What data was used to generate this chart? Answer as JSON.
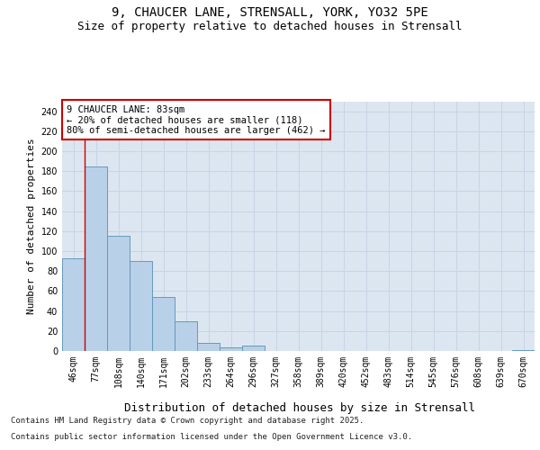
{
  "title_line1": "9, CHAUCER LANE, STRENSALL, YORK, YO32 5PE",
  "title_line2": "Size of property relative to detached houses in Strensall",
  "xlabel": "Distribution of detached houses by size in Strensall",
  "ylabel": "Number of detached properties",
  "categories": [
    "46sqm",
    "77sqm",
    "108sqm",
    "140sqm",
    "171sqm",
    "202sqm",
    "233sqm",
    "264sqm",
    "296sqm",
    "327sqm",
    "358sqm",
    "389sqm",
    "420sqm",
    "452sqm",
    "483sqm",
    "514sqm",
    "545sqm",
    "576sqm",
    "608sqm",
    "639sqm",
    "670sqm"
  ],
  "values": [
    93,
    185,
    115,
    90,
    54,
    30,
    8,
    4,
    5,
    0,
    0,
    0,
    0,
    0,
    0,
    0,
    0,
    0,
    0,
    0,
    1
  ],
  "bar_color": "#b8d0e8",
  "bar_edge_color": "#6699bb",
  "vline_color": "#cc0000",
  "vline_x_idx": 1,
  "annotation_title": "9 CHAUCER LANE: 83sqm",
  "annotation_line1": "← 20% of detached houses are smaller (118)",
  "annotation_line2": "80% of semi-detached houses are larger (462) →",
  "annotation_box_facecolor": "#ffffff",
  "annotation_box_edgecolor": "#cc0000",
  "ylim": [
    0,
    250
  ],
  "yticks": [
    0,
    20,
    40,
    60,
    80,
    100,
    120,
    140,
    160,
    180,
    200,
    220,
    240
  ],
  "grid_color": "#c8d4e4",
  "bg_color": "#dce6f0",
  "footer_line1": "Contains HM Land Registry data © Crown copyright and database right 2025.",
  "footer_line2": "Contains public sector information licensed under the Open Government Licence v3.0.",
  "title_fontsize": 10,
  "subtitle_fontsize": 9,
  "ylabel_fontsize": 8,
  "xlabel_fontsize": 9,
  "tick_fontsize": 7,
  "annotation_fontsize": 7.5,
  "footer_fontsize": 6.5
}
